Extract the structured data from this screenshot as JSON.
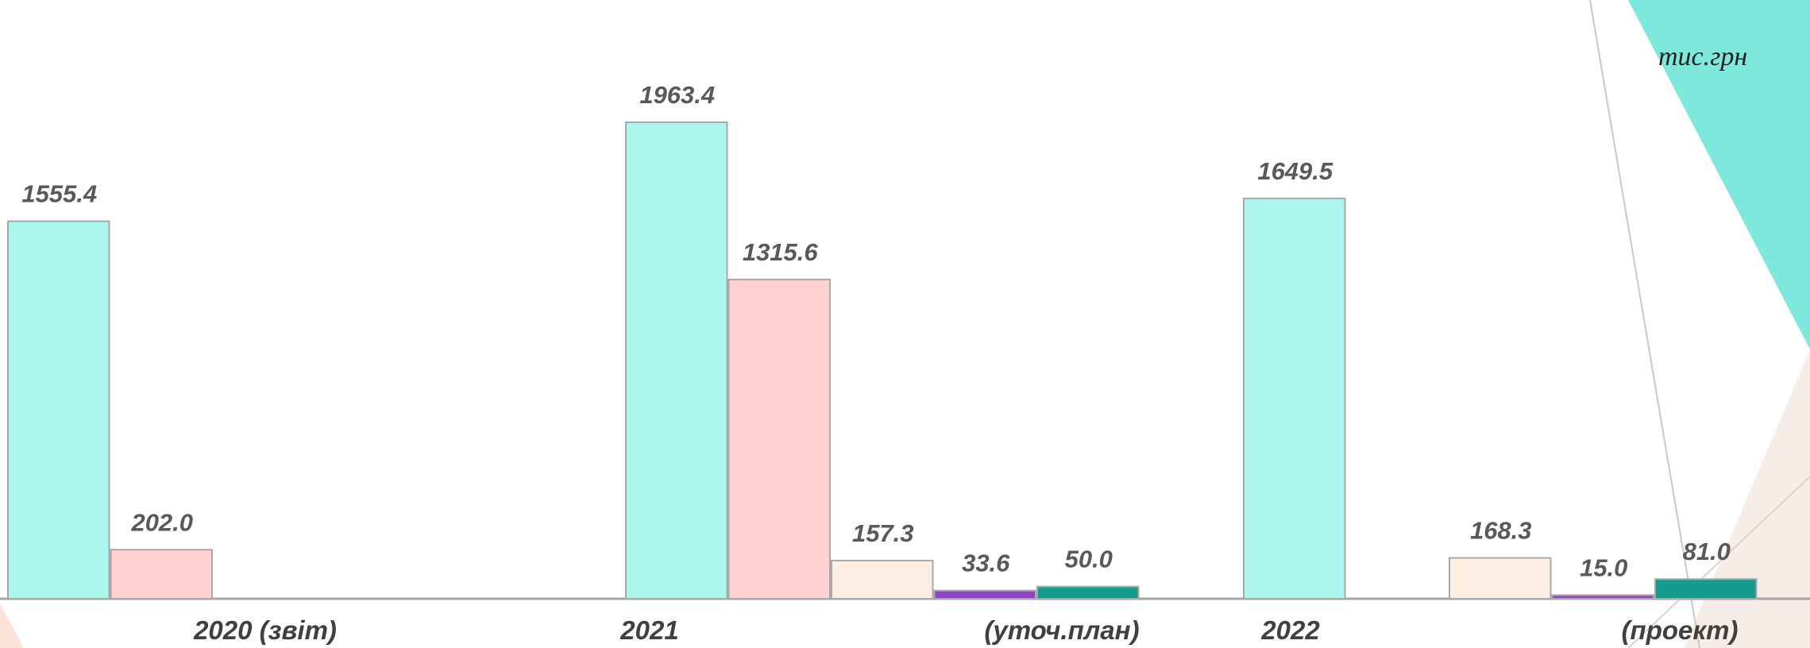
{
  "chart_data": {
    "type": "bar",
    "unit": "тис.грн",
    "categories": [
      "2020 (звіт)",
      "2021",
      "2022"
    ],
    "category_notes": [
      null,
      "(уточ.план)",
      "(проект)"
    ],
    "ylim": [
      0,
      2467
    ],
    "series": [
      {
        "color": "#aef7f0",
        "values": [
          1555.4,
          1963.4,
          1649.5
        ],
        "value_labels": [
          "1555.4",
          "1963.4",
          "1649.5"
        ]
      },
      {
        "color": "#ffd1d1",
        "values": [
          202.0,
          1315.6,
          null
        ],
        "value_labels": [
          "202.0",
          "1315.6",
          null
        ]
      },
      {
        "color": "#fdeee1",
        "values": [
          null,
          157.3,
          168.3
        ],
        "value_labels": [
          null,
          "157.3",
          "168.3"
        ]
      },
      {
        "color": "#8e44c4",
        "values": [
          null,
          33.6,
          15.0
        ],
        "value_labels": [
          null,
          "33.6",
          "15.0"
        ]
      },
      {
        "color": "#169c8c",
        "values": [
          null,
          50.0,
          81.0
        ],
        "value_labels": [
          null,
          "50.0",
          "81.0"
        ]
      }
    ]
  }
}
